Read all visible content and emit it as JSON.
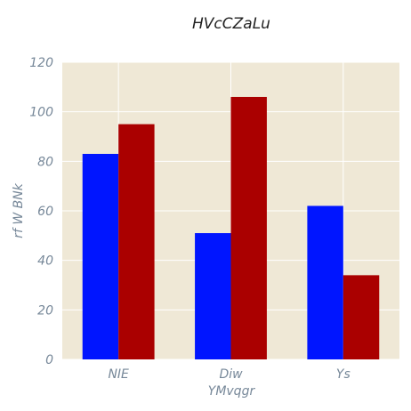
{
  "chart_data": {
    "type": "bar",
    "title": "HVcCZaLu",
    "xlabel": "YMvqgr",
    "ylabel": "rf W BNk",
    "categories": [
      "NIE",
      "Diw",
      "Ys"
    ],
    "series": [
      {
        "values": [
          83,
          51,
          62
        ],
        "color": "#0015ff"
      },
      {
        "values": [
          95,
          106,
          34
        ],
        "color": "#aa0000"
      }
    ],
    "ylim": [
      0,
      120
    ],
    "yticks": [
      0,
      20,
      40,
      60,
      80,
      100,
      120
    ],
    "grid": true,
    "plot_background": "#efe8d6",
    "grid_color": "#ffffff"
  }
}
